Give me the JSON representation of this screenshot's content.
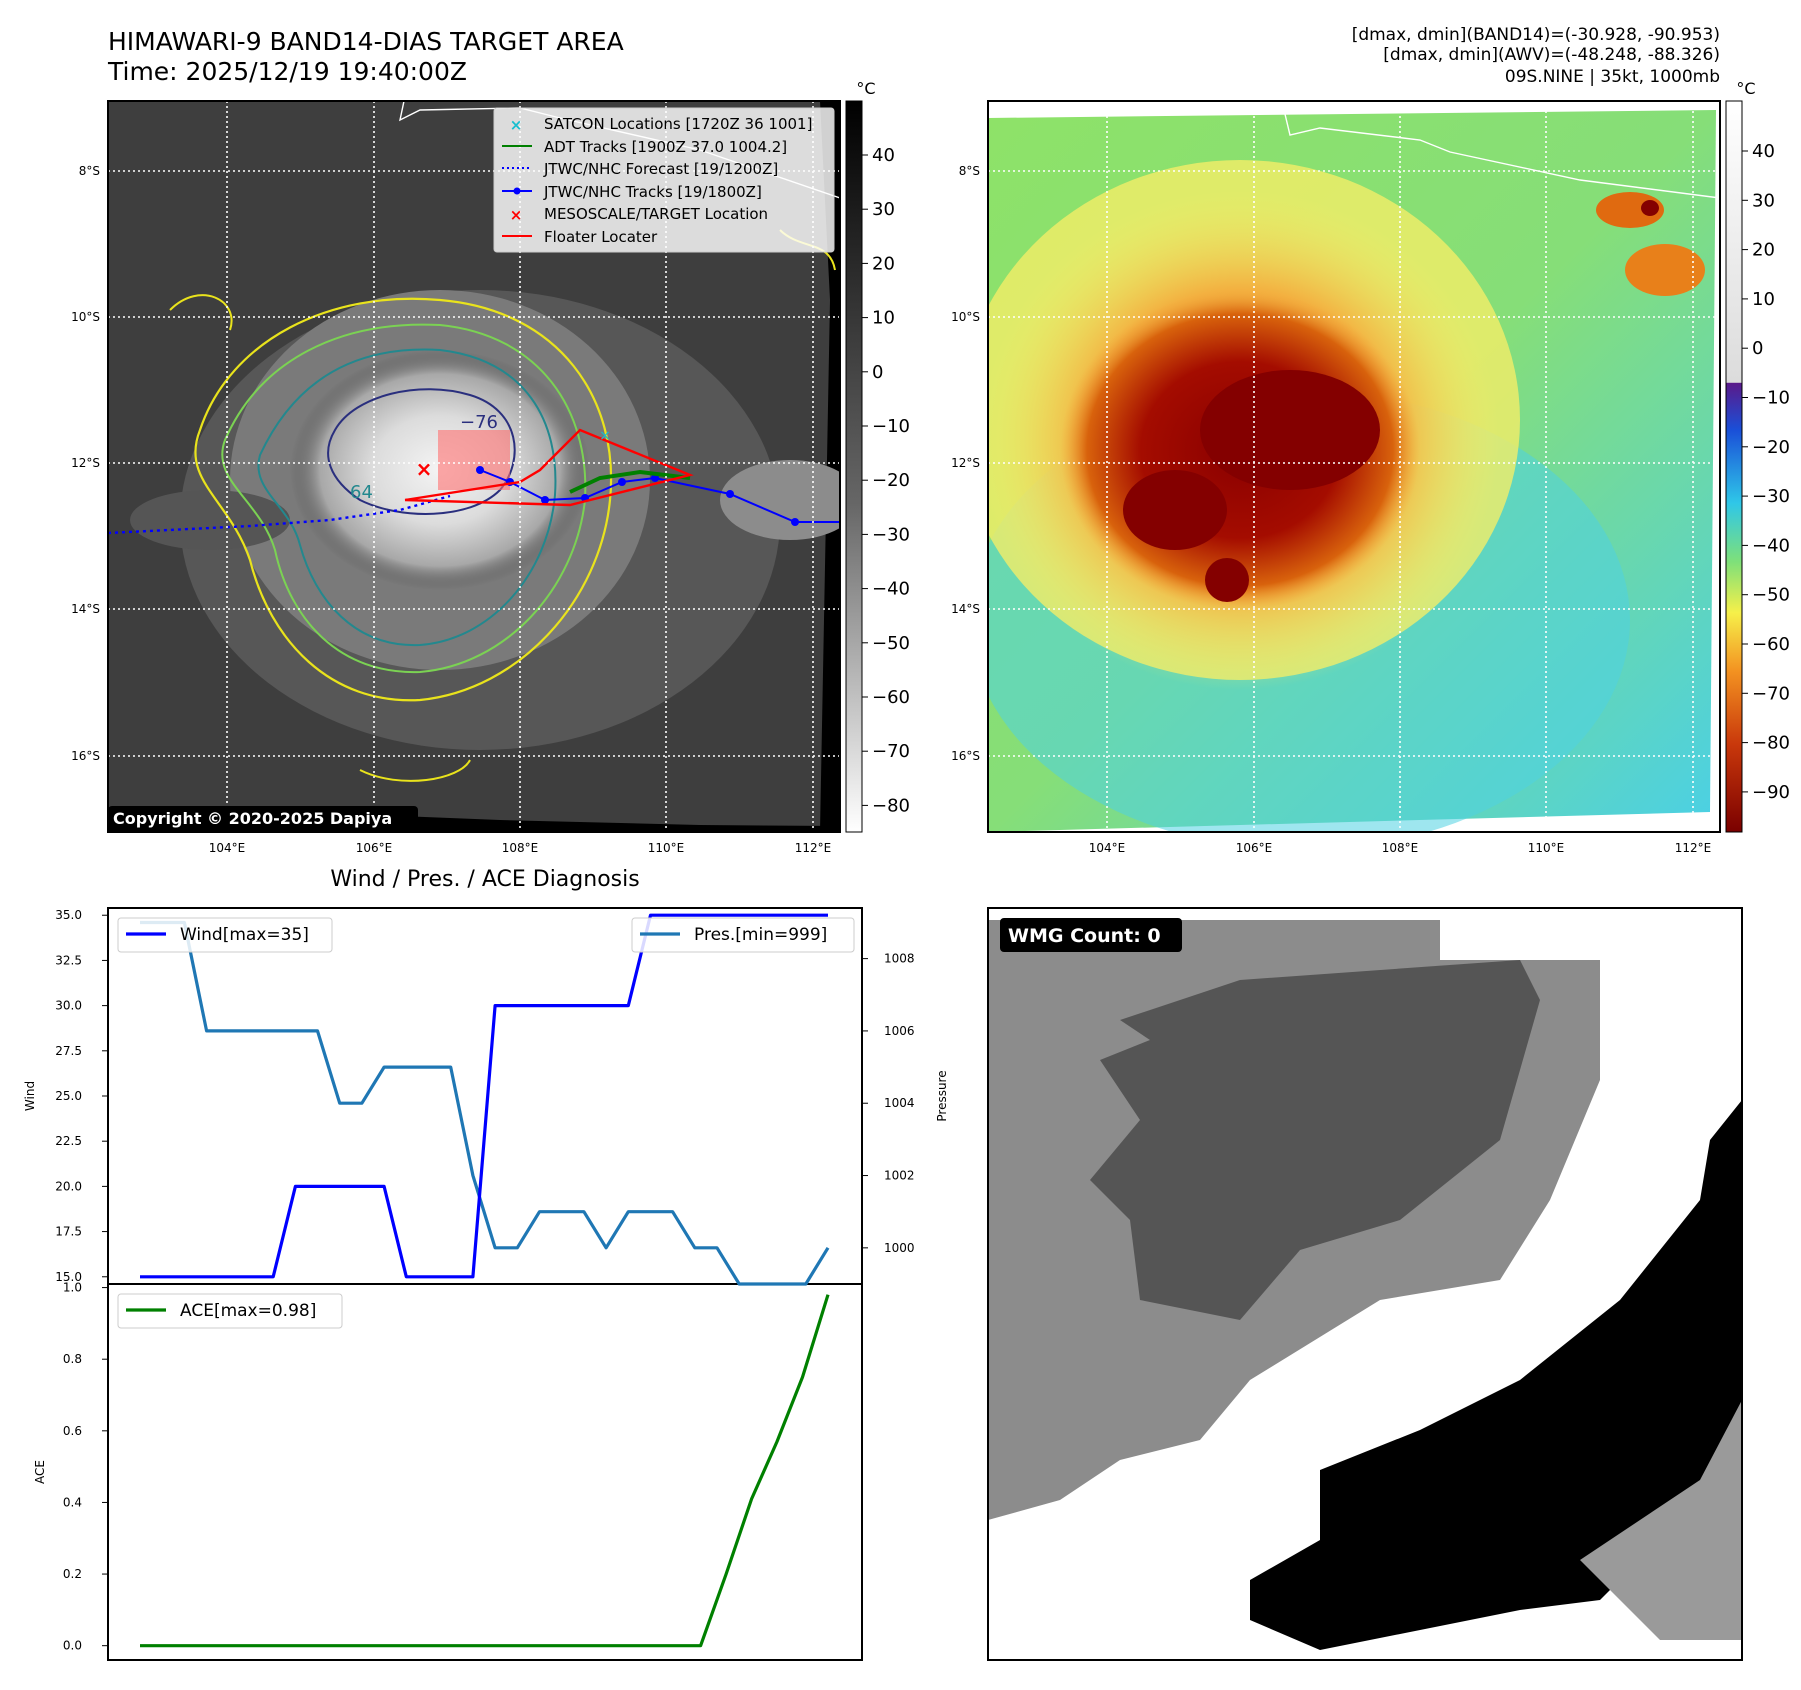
{
  "title": {
    "line1": "HIMAWARI-9 BAND14-DIAS TARGET AREA",
    "line2": "Time: 2025/12/19 19:40:00Z"
  },
  "info": {
    "line1": "[dmax, dmin](BAND14)=(-30.928, -90.953)",
    "line2": "[dmax, dmin](AWV)=(-48.248, -88.326)",
    "line3": "09S.NINE | 35kt, 1000mb"
  },
  "copyright": "Copyright © 2020-2025 Dapiya",
  "colors": {
    "wind": "#0000ff",
    "pres": "#1f77b4",
    "ace": "#008000",
    "track_jtwc": "#0000ff",
    "adt": "#008000",
    "floater": "#ff0000",
    "satcon": "#17becf"
  },
  "map_axes": {
    "lon_ticks": [
      "104°E",
      "106°E",
      "108°E",
      "110°E",
      "112°E"
    ],
    "lat_ticks": [
      "8°S",
      "10°S",
      "12°S",
      "14°S",
      "16°S"
    ]
  },
  "colorbar_left": {
    "unit": "°C",
    "ticks": [
      "40",
      "30",
      "20",
      "10",
      "0",
      "−10",
      "−20",
      "−30",
      "−40",
      "−50",
      "−60",
      "−70",
      "−80"
    ]
  },
  "colorbar_right": {
    "unit": "°C",
    "ticks": [
      "40",
      "30",
      "20",
      "10",
      "0",
      "−10",
      "−20",
      "−30",
      "−40",
      "−50",
      "−60",
      "−70",
      "−80",
      "−90"
    ]
  },
  "legend": [
    {
      "label": "SATCON Locations [1720Z 36 1001]",
      "icon": "x-marker-cyan"
    },
    {
      "label": "ADT Tracks [1900Z 37.0 1004.2]",
      "icon": "line-green"
    },
    {
      "label": "JTWC/NHC Forecast [19/1200Z]",
      "icon": "dotted-line-blue"
    },
    {
      "label": "JTWC/NHC Tracks [19/1800Z]",
      "icon": "line-dot-blue"
    },
    {
      "label": "MESOSCALE/TARGET Location",
      "icon": "x-marker-red"
    },
    {
      "label": "Floater Locater",
      "icon": "line-red"
    }
  ],
  "contour_labels": [
    "−76",
    "64"
  ],
  "diagnosis_title": "Wind / Pres. / ACE Diagnosis",
  "wmg_label": "WMG Count: 0",
  "chart_data": [
    {
      "type": "line",
      "title": "Wind / Pres. / ACE Diagnosis",
      "ylabel": "Wind",
      "ylim": [
        14.6,
        35.4
      ],
      "yticks": [
        "35.0",
        "32.5",
        "30.0",
        "27.5",
        "25.0",
        "22.5",
        "20.0",
        "17.5",
        "15.0"
      ],
      "series": [
        {
          "name": "Wind[max=35]",
          "values": [
            15,
            15,
            15,
            15,
            15,
            15,
            15,
            20,
            20,
            20,
            20,
            20,
            15,
            15,
            15,
            15,
            30,
            30,
            30,
            30,
            30,
            30,
            30,
            35,
            35,
            35,
            35,
            35,
            35,
            35,
            35,
            35
          ]
        }
      ]
    },
    {
      "type": "line",
      "ylabel": "Pressure",
      "ylim": [
        999,
        1009.4
      ],
      "yticks": [
        "1008",
        "1006",
        "1004",
        "1002",
        "1000"
      ],
      "series": [
        {
          "name": "Pres.[min=999]",
          "values": [
            1009,
            1009,
            1009,
            1006,
            1006,
            1006,
            1006,
            1006,
            1006,
            1004,
            1004,
            1005,
            1005,
            1005,
            1005,
            1002,
            1000,
            1000,
            1001,
            1001,
            1001,
            1000,
            1001,
            1001,
            1001,
            1000,
            1000,
            999,
            999,
            999,
            999,
            1000
          ]
        }
      ]
    },
    {
      "type": "line",
      "ylabel": "ACE",
      "ylim": [
        -0.04,
        1.01
      ],
      "yticks": [
        "1.0",
        "0.8",
        "0.6",
        "0.4",
        "0.2",
        "0.0"
      ],
      "series": [
        {
          "name": "ACE[max=0.98]",
          "values": [
            0,
            0,
            0,
            0,
            0,
            0,
            0,
            0,
            0,
            0,
            0,
            0,
            0,
            0,
            0,
            0,
            0,
            0,
            0,
            0,
            0,
            0,
            0,
            0.2,
            0.41,
            0.57,
            0.75,
            0.98
          ]
        }
      ]
    }
  ]
}
